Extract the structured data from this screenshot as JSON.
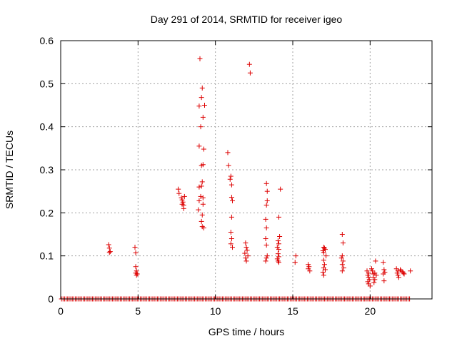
{
  "chart_data": {
    "type": "scatter",
    "title": "Day 291 of 2014, SRMTID for receiver igeo",
    "xlabel": "GPS time / hours",
    "ylabel": "SRMTID / TECUs",
    "xlim": [
      0,
      24
    ],
    "ylim": [
      0,
      0.6
    ],
    "xticks": [
      0,
      5,
      10,
      15,
      20
    ],
    "xtick_labels": [
      "0",
      "5",
      "10",
      "15",
      "20"
    ],
    "yticks": [
      0,
      0.1,
      0.2,
      0.3,
      0.4,
      0.5,
      0.6
    ],
    "ytick_labels": [
      "0",
      "0.1",
      "0.2",
      "0.3",
      "0.4",
      "0.5",
      "0.6"
    ],
    "grid": true,
    "marker": "plus",
    "series": [
      {
        "name": "SRMTID",
        "color": "#dd0000",
        "zero_baseline": {
          "from": 0.05,
          "to": 22.6,
          "step": 0.1,
          "y": 0
        },
        "points": [
          [
            3.1,
            0.126
          ],
          [
            3.15,
            0.118
          ],
          [
            3.2,
            0.11
          ],
          [
            3.15,
            0.108
          ],
          [
            4.8,
            0.12
          ],
          [
            4.85,
            0.107
          ],
          [
            4.85,
            0.075
          ],
          [
            4.9,
            0.065
          ],
          [
            4.85,
            0.06
          ],
          [
            4.9,
            0.055
          ],
          [
            4.95,
            0.058
          ],
          [
            7.6,
            0.255
          ],
          [
            7.65,
            0.245
          ],
          [
            7.8,
            0.235
          ],
          [
            7.85,
            0.23
          ],
          [
            7.9,
            0.225
          ],
          [
            7.85,
            0.22
          ],
          [
            8.0,
            0.238
          ],
          [
            7.95,
            0.218
          ],
          [
            7.95,
            0.21
          ],
          [
            9.0,
            0.558
          ],
          [
            9.15,
            0.49
          ],
          [
            9.1,
            0.468
          ],
          [
            9.3,
            0.45
          ],
          [
            8.95,
            0.448
          ],
          [
            9.2,
            0.422
          ],
          [
            9.05,
            0.4
          ],
          [
            8.95,
            0.355
          ],
          [
            9.25,
            0.348
          ],
          [
            9.2,
            0.312
          ],
          [
            9.1,
            0.31
          ],
          [
            9.15,
            0.272
          ],
          [
            8.95,
            0.26
          ],
          [
            9.1,
            0.262
          ],
          [
            9.05,
            0.238
          ],
          [
            9.2,
            0.235
          ],
          [
            8.95,
            0.228
          ],
          [
            9.2,
            0.22
          ],
          [
            8.9,
            0.207
          ],
          [
            9.15,
            0.195
          ],
          [
            9.1,
            0.18
          ],
          [
            9.15,
            0.168
          ],
          [
            9.25,
            0.165
          ],
          [
            10.8,
            0.34
          ],
          [
            10.85,
            0.31
          ],
          [
            11.0,
            0.285
          ],
          [
            10.95,
            0.278
          ],
          [
            11.05,
            0.265
          ],
          [
            11.05,
            0.236
          ],
          [
            11.1,
            0.228
          ],
          [
            11.05,
            0.19
          ],
          [
            11.0,
            0.155
          ],
          [
            11.05,
            0.14
          ],
          [
            11.0,
            0.128
          ],
          [
            11.1,
            0.12
          ],
          [
            12.2,
            0.545
          ],
          [
            12.25,
            0.525
          ],
          [
            11.95,
            0.13
          ],
          [
            12.0,
            0.12
          ],
          [
            12.05,
            0.113
          ],
          [
            11.9,
            0.106
          ],
          [
            12.1,
            0.1
          ],
          [
            11.95,
            0.095
          ],
          [
            12.0,
            0.088
          ],
          [
            13.3,
            0.268
          ],
          [
            13.35,
            0.25
          ],
          [
            13.35,
            0.228
          ],
          [
            13.3,
            0.218
          ],
          [
            13.25,
            0.185
          ],
          [
            13.3,
            0.165
          ],
          [
            13.25,
            0.14
          ],
          [
            13.3,
            0.125
          ],
          [
            13.35,
            0.1
          ],
          [
            13.3,
            0.095
          ],
          [
            13.25,
            0.088
          ],
          [
            14.2,
            0.255
          ],
          [
            14.1,
            0.19
          ],
          [
            14.15,
            0.145
          ],
          [
            14.05,
            0.135
          ],
          [
            14.1,
            0.128
          ],
          [
            14.0,
            0.12
          ],
          [
            14.1,
            0.115
          ],
          [
            14.05,
            0.105
          ],
          [
            14.1,
            0.098
          ],
          [
            14.0,
            0.093
          ],
          [
            14.05,
            0.088
          ],
          [
            14.1,
            0.085
          ],
          [
            15.2,
            0.1
          ],
          [
            15.15,
            0.085
          ],
          [
            16.0,
            0.08
          ],
          [
            16.05,
            0.075
          ],
          [
            16.0,
            0.07
          ],
          [
            16.1,
            0.065
          ],
          [
            17.0,
            0.12
          ],
          [
            17.05,
            0.118
          ],
          [
            17.1,
            0.115
          ],
          [
            16.95,
            0.112
          ],
          [
            17.0,
            0.108
          ],
          [
            17.15,
            0.1
          ],
          [
            17.0,
            0.09
          ],
          [
            17.05,
            0.08
          ],
          [
            17.0,
            0.072
          ],
          [
            17.1,
            0.068
          ],
          [
            16.95,
            0.062
          ],
          [
            17.0,
            0.055
          ],
          [
            18.2,
            0.15
          ],
          [
            18.25,
            0.13
          ],
          [
            18.2,
            0.1
          ],
          [
            18.15,
            0.095
          ],
          [
            18.25,
            0.088
          ],
          [
            18.2,
            0.08
          ],
          [
            18.3,
            0.072
          ],
          [
            18.2,
            0.065
          ],
          [
            19.8,
            0.065
          ],
          [
            19.9,
            0.06
          ],
          [
            19.85,
            0.055
          ],
          [
            19.9,
            0.05
          ],
          [
            19.95,
            0.045
          ],
          [
            19.85,
            0.04
          ],
          [
            19.9,
            0.035
          ],
          [
            20.0,
            0.03
          ],
          [
            20.1,
            0.07
          ],
          [
            20.15,
            0.065
          ],
          [
            20.2,
            0.058
          ],
          [
            20.2,
            0.05
          ],
          [
            20.3,
            0.045
          ],
          [
            20.25,
            0.038
          ],
          [
            20.35,
            0.088
          ],
          [
            20.3,
            0.06
          ],
          [
            20.4,
            0.055
          ],
          [
            20.85,
            0.085
          ],
          [
            20.9,
            0.068
          ],
          [
            20.95,
            0.062
          ],
          [
            20.85,
            0.058
          ],
          [
            20.9,
            0.042
          ],
          [
            21.7,
            0.07
          ],
          [
            21.8,
            0.065
          ],
          [
            21.75,
            0.06
          ],
          [
            21.8,
            0.055
          ],
          [
            21.85,
            0.05
          ],
          [
            21.95,
            0.068
          ],
          [
            22.0,
            0.065
          ],
          [
            22.1,
            0.063
          ],
          [
            22.15,
            0.06
          ],
          [
            22.2,
            0.058
          ],
          [
            22.6,
            0.065
          ]
        ]
      }
    ]
  }
}
